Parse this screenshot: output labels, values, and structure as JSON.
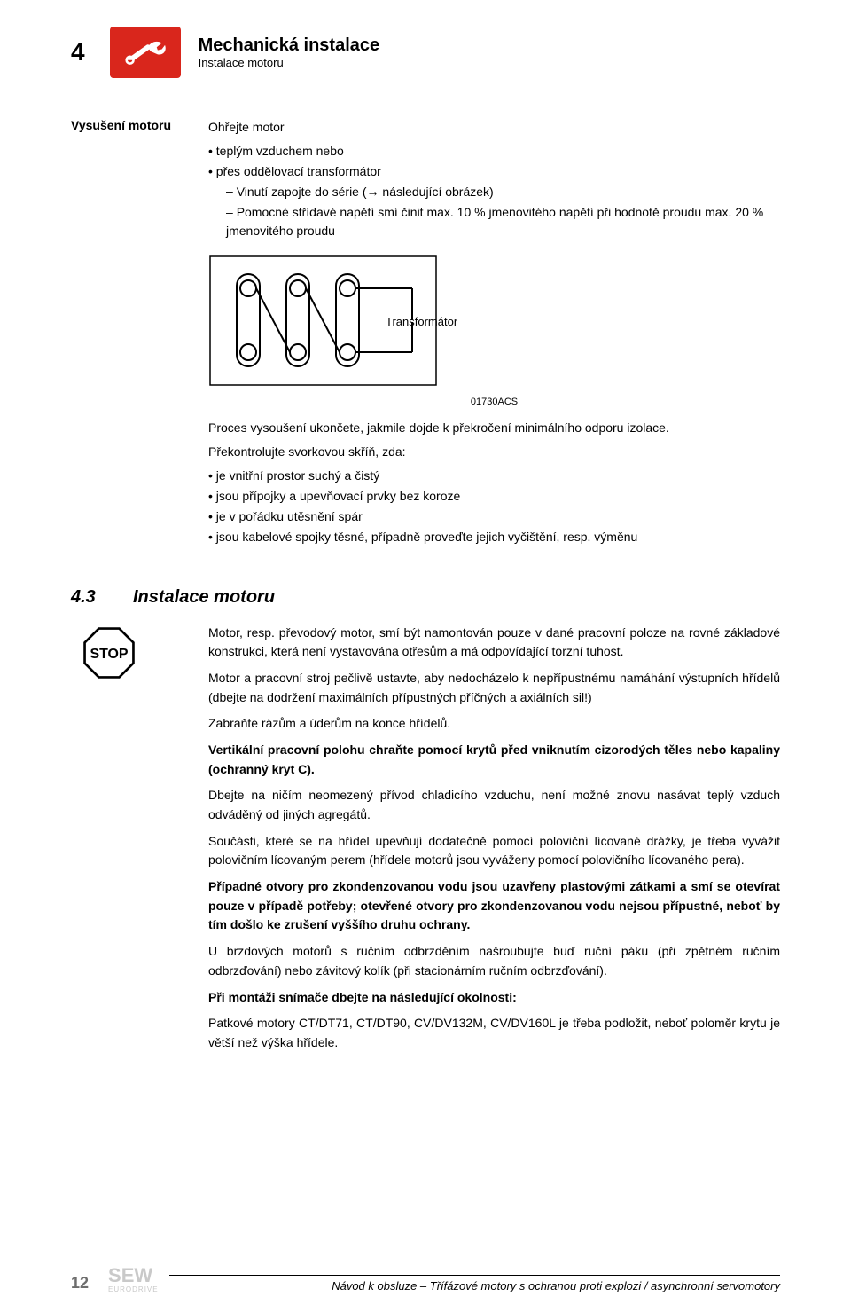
{
  "header": {
    "page_number": "4",
    "title": "Mechanická instalace",
    "subtitle": "Instalace motoru"
  },
  "drying": {
    "label": "Vysušení motoru",
    "intro": "Ohřejte motor",
    "bullets": [
      "teplým vzduchem nebo",
      "přes oddělovací transformátor"
    ],
    "dash_items": [
      "Vinutí zapojte do série (→ následující obrázek)",
      "Pomocné střídavé napětí smí činit max. 10 % jmenovitého napětí při hodnotě proudu max. 20 % jmenovitého proudu"
    ],
    "transformer_label": "Transformátor",
    "figure_code": "01730ACS",
    "after_fig_p1": "Proces vysoušení ukončete, jakmile dojde k překročení minimálního odporu izolace.",
    "after_fig_p2": "Překontrolujte svorkovou skříň, zda:",
    "check_bullets": [
      "je vnitřní prostor suchý a čistý",
      "jsou přípojky a upevňovací prvky bez koroze",
      "je v pořádku utěsnění spár",
      "jsou kabelové spojky těsné, případně proveďte jejich vyčištění, resp. výměnu"
    ]
  },
  "section43": {
    "number": "4.3",
    "title": "Instalace motoru",
    "paragraphs": [
      {
        "text": "Motor, resp. převodový motor, smí být namontován pouze v dané pracovní poloze na rovné základové konstrukci, která není vystavována otřesům a má odpovídající torzní tuhost.",
        "bold": false
      },
      {
        "text": "Motor a pracovní stroj pečlivě ustavte, aby nedocházelo k nepřípustnému namáhání výstupních hřídelů (dbejte na dodržení maximálních přípustných příčných a axiálních sil!)",
        "bold": false
      },
      {
        "text": "Zabraňte rázům a úderům na konce hřídelů.",
        "bold": false
      },
      {
        "text": "Vertikální pracovní polohu chraňte pomocí krytů před vniknutím cizorodých těles nebo kapaliny (ochranný kryt C).",
        "bold": true
      },
      {
        "text": "Dbejte na ničím neomezený přívod chladicího vzduchu, není možné znovu nasávat teplý vzduch odváděný od jiných agregátů.",
        "bold": false
      },
      {
        "text": "Součásti, které se na hřídel upevňují dodatečně pomocí poloviční lícované drážky, je třeba vyvážit polovičním lícovaným perem (hřídele motorů jsou vyváženy pomocí polovičního lícovaného pera).",
        "bold": false
      },
      {
        "text": "Případné otvory pro zkondenzovanou vodu jsou uzavřeny plastovými zátkami a smí se otevírat pouze v případě potřeby; otevřené otvory pro zkondenzovanou vodu nejsou přípustné, neboť by tím došlo ke zrušení vyššího druhu ochrany.",
        "bold": true
      },
      {
        "text": "U brzdových motorů s ručním odbrzděním našroubujte buď ruční páku (při zpětném ručním odbrzďování) nebo závitový kolík (při stacionárním ručním odbrzďování).",
        "bold": false
      },
      {
        "text": "Při montáži snímače dbejte na následující okolnosti:",
        "bold": true
      },
      {
        "text": "Patkové motory CT/DT71, CT/DT90, CV/DV132M, CV/DV160L je třeba podložit, neboť poloměr krytu je větší než výška hřídele.",
        "bold": false
      }
    ]
  },
  "footer": {
    "page": "12",
    "logo_main": "SEW",
    "logo_sub": "EURODRIVE",
    "title": "Návod k obsluze – Třífázové motory s ochranou proti explozi / asynchronní servomotory"
  },
  "colors": {
    "accent": "#d9261c",
    "grey_logo": "#c9c9c9"
  }
}
